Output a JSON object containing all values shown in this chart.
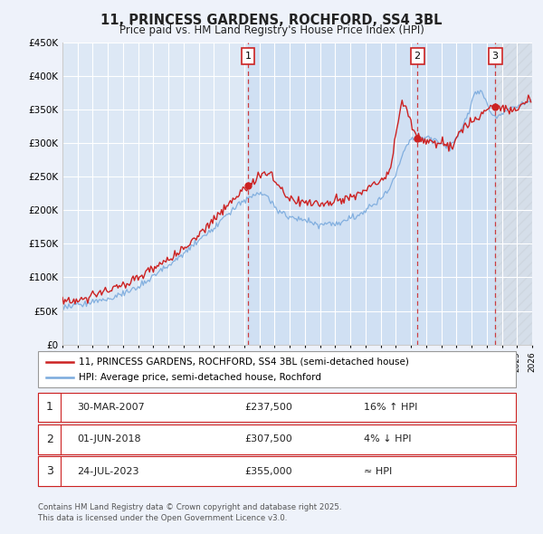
{
  "title": "11, PRINCESS GARDENS, ROCHFORD, SS4 3BL",
  "subtitle": "Price paid vs. HM Land Registry's House Price Index (HPI)",
  "background_color": "#eef2fa",
  "plot_bg_color": "#dde8f5",
  "legend1_label": "11, PRINCESS GARDENS, ROCHFORD, SS4 3BL (semi-detached house)",
  "legend2_label": "HPI: Average price, semi-detached house, Rochford",
  "red_color": "#cc2222",
  "blue_color": "#7aaadd",
  "grid_color": "#ffffff",
  "dashed_line_color": "#cc2222",
  "transactions": [
    {
      "num": 1,
      "date": "30-MAR-2007",
      "price": 237500,
      "x": 2007.25,
      "hpi_rel": "16% ↑ HPI"
    },
    {
      "num": 2,
      "date": "01-JUN-2018",
      "price": 307500,
      "x": 2018.42,
      "hpi_rel": "4% ↓ HPI"
    },
    {
      "num": 3,
      "date": "24-JUL-2023",
      "price": 355000,
      "x": 2023.56,
      "hpi_rel": "≈ HPI"
    }
  ],
  "footer": "Contains HM Land Registry data © Crown copyright and database right 2025.\nThis data is licensed under the Open Government Licence v3.0.",
  "ylim": [
    0,
    450000
  ],
  "xlim": [
    1995,
    2026
  ],
  "yticks": [
    0,
    50000,
    100000,
    150000,
    200000,
    250000,
    300000,
    350000,
    400000,
    450000
  ],
  "ytick_labels": [
    "£0",
    "£50K",
    "£100K",
    "£150K",
    "£200K",
    "£250K",
    "£300K",
    "£350K",
    "£400K",
    "£450K"
  ],
  "xticks": [
    1995,
    1996,
    1997,
    1998,
    1999,
    2000,
    2001,
    2002,
    2003,
    2004,
    2005,
    2006,
    2007,
    2008,
    2009,
    2010,
    2011,
    2012,
    2013,
    2014,
    2015,
    2016,
    2017,
    2018,
    2019,
    2020,
    2021,
    2022,
    2023,
    2024,
    2025,
    2026
  ]
}
